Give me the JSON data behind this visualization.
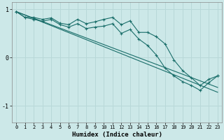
{
  "xlabel": "Humidex (Indice chaleur)",
  "xlim": [
    -0.5,
    23.5
  ],
  "ylim": [
    -1.35,
    1.15
  ],
  "yticks": [
    -1,
    0,
    1
  ],
  "xticks": [
    0,
    1,
    2,
    3,
    4,
    5,
    6,
    7,
    8,
    9,
    10,
    11,
    12,
    13,
    14,
    15,
    16,
    17,
    18,
    19,
    20,
    21,
    22,
    23
  ],
  "background_color": "#cce8e8",
  "grid_color": "#b8d8d8",
  "line_color": "#1a6e6a",
  "line1_x": [
    0,
    1,
    2,
    3,
    4,
    5,
    6,
    7,
    8,
    9,
    10,
    11,
    12,
    13,
    14,
    15,
    16,
    17,
    18,
    19,
    20,
    21,
    22,
    23
  ],
  "line1_y": [
    0.95,
    0.83,
    0.83,
    0.79,
    0.82,
    0.71,
    0.68,
    0.79,
    0.7,
    0.74,
    0.79,
    0.83,
    0.68,
    0.76,
    0.52,
    0.52,
    0.43,
    0.28,
    -0.05,
    -0.27,
    -0.42,
    -0.58,
    -0.45,
    -0.38
  ],
  "line2_x": [
    0,
    1,
    2,
    3,
    4,
    5,
    6,
    7,
    8,
    9,
    10,
    11,
    12,
    13,
    14,
    15,
    16,
    17,
    18,
    19,
    20,
    21,
    22,
    23
  ],
  "line2_y": [
    0.95,
    0.83,
    0.79,
    0.75,
    0.79,
    0.68,
    0.63,
    0.7,
    0.6,
    0.63,
    0.65,
    0.7,
    0.5,
    0.58,
    0.38,
    0.25,
    0.05,
    -0.22,
    -0.38,
    -0.5,
    -0.58,
    -0.68,
    -0.52,
    -0.38
  ],
  "line3_x": [
    0,
    23
  ],
  "line3_y": [
    0.95,
    -0.62
  ],
  "line4_x": [
    0,
    23
  ],
  "line4_y": [
    0.95,
    -0.72
  ],
  "figsize": [
    3.2,
    2.0
  ],
  "dpi": 100
}
